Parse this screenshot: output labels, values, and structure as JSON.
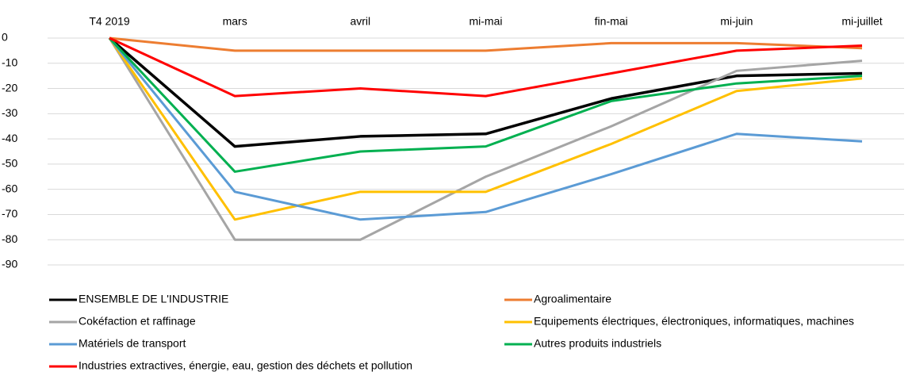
{
  "chart_data": {
    "type": "line",
    "categories": [
      "T4 2019",
      "mars",
      "avril",
      "mi-mai",
      "fin-mai",
      "mi-juin",
      "mi-juillet"
    ],
    "series": [
      {
        "name": "ENSEMBLE DE L'INDUSTRIE",
        "color": "#000000",
        "values": [
          0,
          -43,
          -39,
          -38,
          -24,
          -15,
          -14
        ]
      },
      {
        "name": "Agroalimentaire",
        "color": "#ED7D31",
        "values": [
          0,
          -5,
          -5,
          -5,
          -2,
          -2,
          -4
        ]
      },
      {
        "name": "Cokéfaction et raffinage",
        "color": "#A5A5A5",
        "values": [
          0,
          -80,
          -80,
          -55,
          -35,
          -13,
          -9
        ]
      },
      {
        "name": "Equipements électriques, électroniques, informatiques, machines",
        "color": "#FFC000",
        "values": [
          0,
          -72,
          -61,
          -61,
          -42,
          -21,
          -16
        ]
      },
      {
        "name": "Matériels de transport",
        "color": "#5B9BD5",
        "values": [
          0,
          -61,
          -72,
          -69,
          -54,
          -38,
          -41
        ]
      },
      {
        "name": "Autres produits industriels",
        "color": "#00B050",
        "values": [
          0,
          -53,
          -45,
          -43,
          -25,
          -18,
          -15
        ]
      },
      {
        "name": "Industries extractives, énergie, eau, gestion des déchets et pollution",
        "color": "#FF0000",
        "values": [
          0,
          -23,
          -20,
          -23,
          -14,
          -5,
          -3
        ]
      }
    ],
    "ylim": [
      -90,
      0
    ],
    "yticks": [
      0,
      -10,
      -20,
      -30,
      -40,
      -50,
      -60,
      -70,
      -80,
      -90
    ],
    "grid": true,
    "legend": "bottom"
  }
}
